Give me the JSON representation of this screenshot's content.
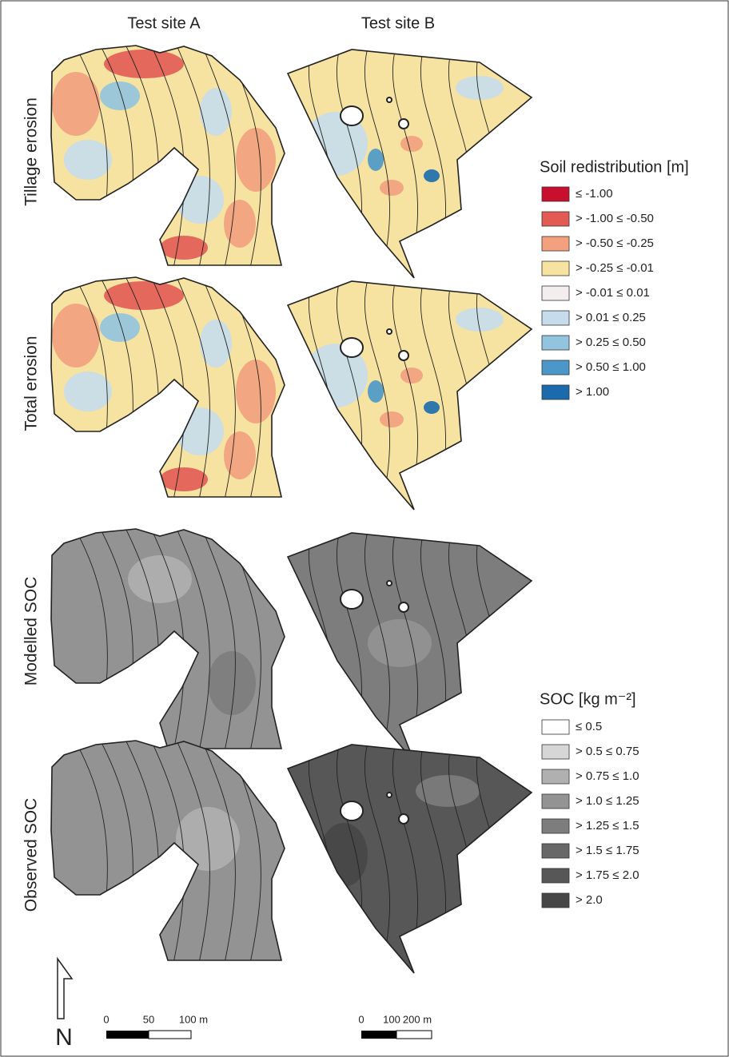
{
  "columns": [
    "Test site A",
    "Test site B"
  ],
  "rows": [
    "Tillage erosion",
    "Total erosion",
    "Modelled SOC",
    "Observed SOC"
  ],
  "legends": [
    {
      "title": "Soil redistribution [m]",
      "items": [
        {
          "label": "≤ -1.00",
          "color": "#c8102e"
        },
        {
          "label": "> -1.00 ≤ -0.50",
          "color": "#e35a55"
        },
        {
          "label": "> -0.50 ≤ -0.25",
          "color": "#f2a07e"
        },
        {
          "label": "> -0.25 ≤ -0.01",
          "color": "#f6e3a1"
        },
        {
          "label": "> -0.01 ≤  0.01",
          "color": "#f2eeee"
        },
        {
          "label": "> 0.01 ≤  0.25",
          "color": "#c6dcec"
        },
        {
          "label": "> 0.25 ≤  0.50",
          "color": "#92c3df"
        },
        {
          "label": "> 0.50 ≤  1.00",
          "color": "#4b97c9"
        },
        {
          "label": "> 1.00",
          "color": "#1b6aac"
        }
      ]
    },
    {
      "title": "SOC [kg m⁻²]",
      "items": [
        {
          "label": "≤ 0.5",
          "color": "#ffffff"
        },
        {
          "label": "> 0.5 ≤ 0.75",
          "color": "#d6d6d6"
        },
        {
          "label": "> 0.75 ≤ 1.0",
          "color": "#b0b0b0"
        },
        {
          "label": "> 1.0 ≤ 1.25",
          "color": "#939393"
        },
        {
          "label": "> 1.25 ≤ 1.5",
          "color": "#7d7d7d"
        },
        {
          "label": "> 1.5 ≤ 1.75",
          "color": "#686868"
        },
        {
          "label": "> 1.75 ≤ 2.0",
          "color": "#575757"
        },
        {
          "label": "> 2.0",
          "color": "#474747"
        }
      ]
    }
  ],
  "scale_bars": [
    {
      "labels": [
        "0",
        "50",
        "100 m"
      ]
    },
    {
      "labels": [
        "0",
        "100",
        "200 m"
      ]
    }
  ],
  "north": "N"
}
